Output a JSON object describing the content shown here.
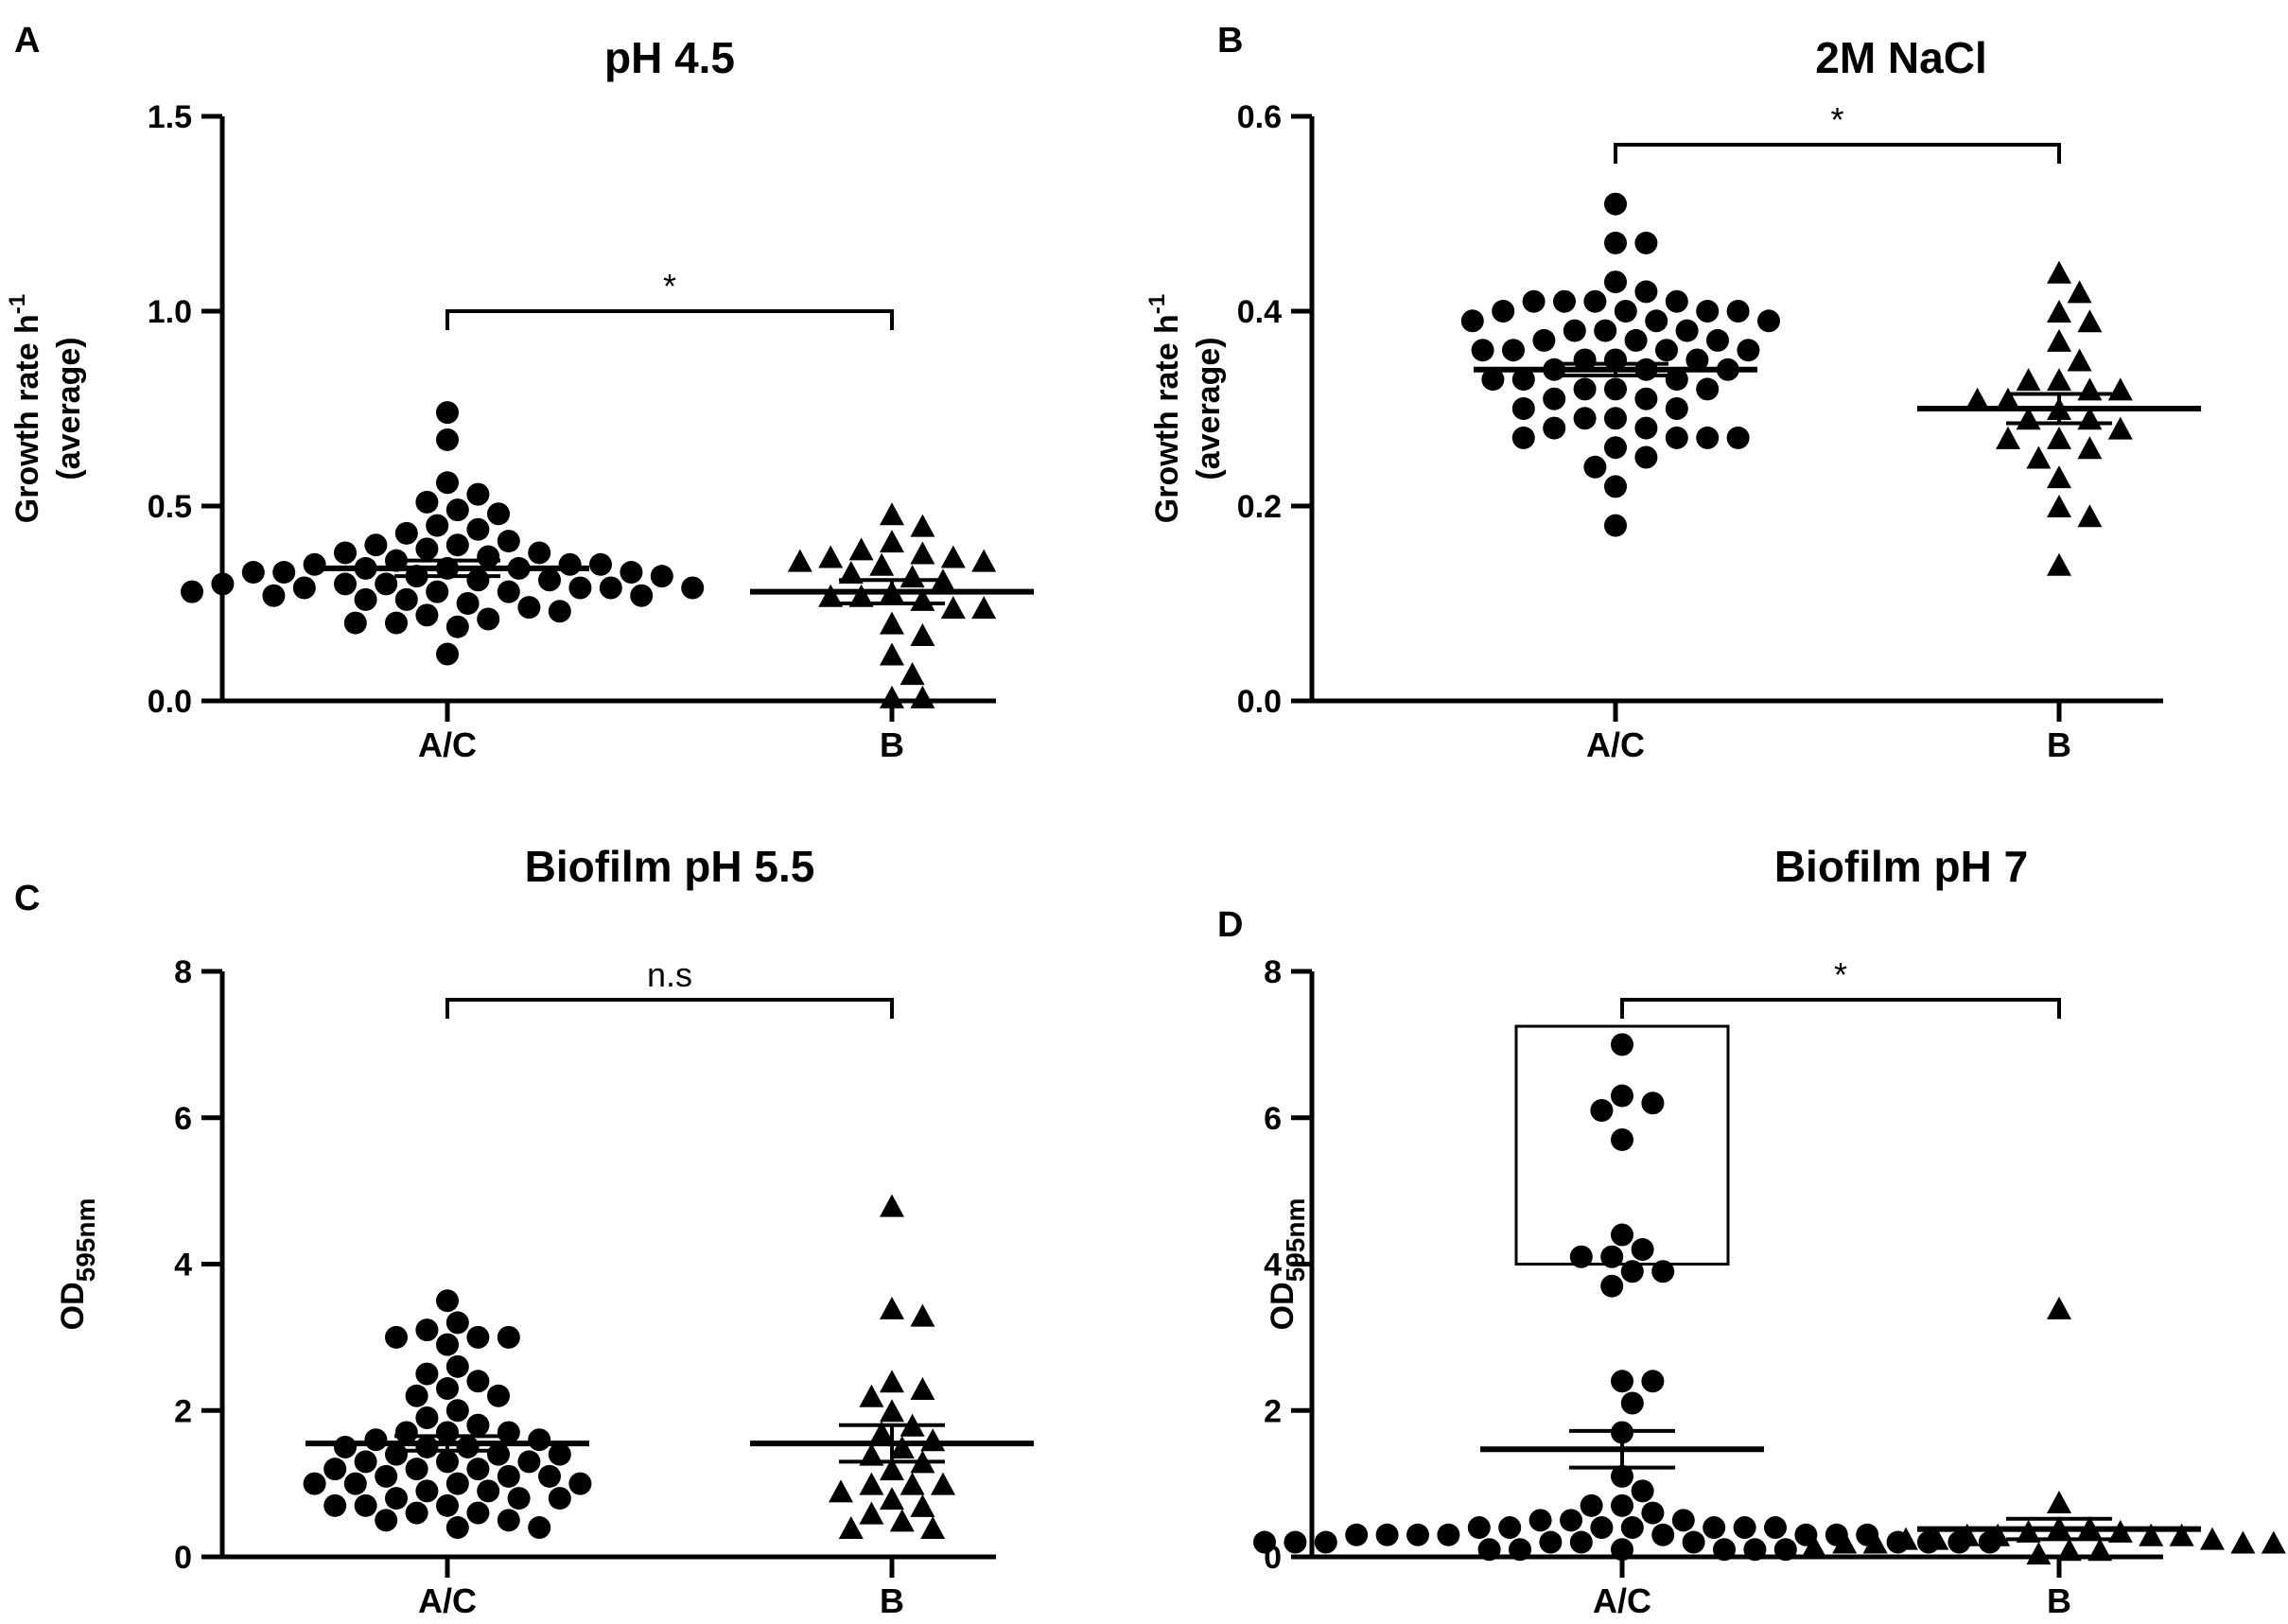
{
  "chart_data": [
    {
      "type": "scatter",
      "panel": "A",
      "title": "pH 4.5",
      "ylabel": [
        "Growth rate h",
        "(average)"
      ],
      "ylabel_sup": "-1",
      "ylim": [
        0,
        1.5
      ],
      "yticks": [
        0,
        0.5,
        1.0,
        1.5
      ],
      "ytick_labels": [
        "0.0",
        "0.5",
        "1.0",
        "1.5"
      ],
      "categories": [
        "A/C",
        "B"
      ],
      "significance": "*",
      "series": [
        {
          "name": "A/C",
          "marker": "circle",
          "mean": 0.34,
          "sem": 0.02,
          "values": [
            0.74,
            0.67,
            0.56,
            0.53,
            0.51,
            0.49,
            0.48,
            0.45,
            0.44,
            0.43,
            0.41,
            0.4,
            0.4,
            0.39,
            0.38,
            0.38,
            0.37,
            0.36,
            0.35,
            0.35,
            0.35,
            0.34,
            0.34,
            0.34,
            0.33,
            0.33,
            0.33,
            0.32,
            0.32,
            0.31,
            0.31,
            0.3,
            0.3,
            0.3,
            0.29,
            0.29,
            0.29,
            0.29,
            0.28,
            0.28,
            0.28,
            0.27,
            0.27,
            0.26,
            0.26,
            0.25,
            0.24,
            0.23,
            0.22,
            0.21,
            0.2,
            0.2,
            0.19,
            0.12
          ]
        },
        {
          "name": "B",
          "marker": "triangle",
          "mean": 0.28,
          "sem": 0.03,
          "values": [
            0.48,
            0.45,
            0.41,
            0.39,
            0.38,
            0.37,
            0.37,
            0.36,
            0.36,
            0.35,
            0.33,
            0.32,
            0.31,
            0.28,
            0.27,
            0.27,
            0.26,
            0.24,
            0.24,
            0.2,
            0.17,
            0.12,
            0.07,
            0.01,
            0.01
          ]
        }
      ]
    },
    {
      "type": "scatter",
      "panel": "B",
      "title": "2M NaCl",
      "ylabel": [
        "Growth rate h",
        "(average)"
      ],
      "ylabel_sup": "-1",
      "ylim": [
        0,
        0.6
      ],
      "yticks": [
        0,
        0.2,
        0.4,
        0.6
      ],
      "ytick_labels": [
        "0.0",
        "0.2",
        "0.4",
        "0.6"
      ],
      "categories": [
        "A/C",
        "B"
      ],
      "significance": "*",
      "series": [
        {
          "name": "A/C",
          "marker": "circle",
          "mean": 0.34,
          "sem": 0.006,
          "values": [
            0.51,
            0.47,
            0.47,
            0.43,
            0.42,
            0.41,
            0.41,
            0.41,
            0.41,
            0.4,
            0.4,
            0.4,
            0.4,
            0.39,
            0.39,
            0.39,
            0.38,
            0.38,
            0.38,
            0.37,
            0.37,
            0.37,
            0.36,
            0.36,
            0.36,
            0.36,
            0.35,
            0.35,
            0.35,
            0.34,
            0.34,
            0.34,
            0.33,
            0.33,
            0.33,
            0.32,
            0.32,
            0.32,
            0.31,
            0.31,
            0.3,
            0.3,
            0.29,
            0.29,
            0.28,
            0.28,
            0.27,
            0.27,
            0.27,
            0.27,
            0.26,
            0.25,
            0.24,
            0.22,
            0.18
          ]
        },
        {
          "name": "B",
          "marker": "triangle",
          "mean": 0.3,
          "sem": 0.015,
          "values": [
            0.44,
            0.42,
            0.4,
            0.39,
            0.37,
            0.35,
            0.33,
            0.33,
            0.32,
            0.32,
            0.31,
            0.31,
            0.3,
            0.29,
            0.29,
            0.28,
            0.27,
            0.27,
            0.26,
            0.25,
            0.23,
            0.2,
            0.19,
            0.14
          ]
        }
      ]
    },
    {
      "type": "scatter",
      "panel": "C",
      "title": "Biofilm pH 5.5",
      "ylabel": [
        "OD"
      ],
      "ylabel_sub": "595nm",
      "ylim": [
        0,
        8
      ],
      "yticks": [
        0,
        2,
        4,
        6,
        8
      ],
      "ytick_labels": [
        "0",
        "2",
        "4",
        "6",
        "8"
      ],
      "categories": [
        "A/C",
        "B"
      ],
      "significance": "n.s",
      "series": [
        {
          "name": "A/C",
          "marker": "circle",
          "mean": 1.55,
          "sem": 0.1,
          "values": [
            3.5,
            3.2,
            3.1,
            3.0,
            3.0,
            3.0,
            2.9,
            2.6,
            2.5,
            2.4,
            2.3,
            2.2,
            2.2,
            2.0,
            1.9,
            1.8,
            1.7,
            1.7,
            1.7,
            1.6,
            1.6,
            1.5,
            1.5,
            1.5,
            1.4,
            1.4,
            1.4,
            1.3,
            1.3,
            1.3,
            1.2,
            1.2,
            1.2,
            1.1,
            1.1,
            1.1,
            1.0,
            1.0,
            1.0,
            1.0,
            0.9,
            0.9,
            0.8,
            0.8,
            0.8,
            0.7,
            0.7,
            0.7,
            0.6,
            0.6,
            0.5,
            0.5,
            0.4,
            0.4
          ]
        },
        {
          "name": "B",
          "marker": "triangle",
          "mean": 1.55,
          "sem": 0.25,
          "values": [
            4.8,
            3.4,
            3.3,
            2.4,
            2.3,
            2.2,
            2.0,
            1.8,
            1.7,
            1.6,
            1.5,
            1.4,
            1.3,
            1.2,
            1.0,
            1.0,
            1.0,
            0.9,
            0.8,
            0.7,
            0.6,
            0.5,
            0.4,
            0.4
          ]
        }
      ]
    },
    {
      "type": "scatter",
      "panel": "D",
      "title": "Biofilm pH 7",
      "ylabel": [
        "OD"
      ],
      "ylabel_sub": "595nm",
      "ylim": [
        0,
        8
      ],
      "yticks": [
        0,
        2,
        4,
        6,
        8
      ],
      "ytick_labels": [
        "0",
        "2",
        "4",
        "6",
        "8"
      ],
      "categories": [
        "A/C",
        "B"
      ],
      "significance": "*",
      "highlight_box": {
        "x_from": "A/C",
        "y_range": [
          4.0,
          7.25
        ]
      },
      "series": [
        {
          "name": "A/C",
          "marker": "circle",
          "mean": 1.47,
          "sem": 0.25,
          "values": [
            7.0,
            6.3,
            6.2,
            6.1,
            5.7,
            4.4,
            4.2,
            4.1,
            4.1,
            3.9,
            3.9,
            3.7,
            2.4,
            2.4,
            2.1,
            1.7,
            1.1,
            0.9,
            0.7,
            0.7,
            0.6,
            0.5,
            0.5,
            0.5,
            0.4,
            0.4,
            0.4,
            0.4,
            0.4,
            0.4,
            0.4,
            0.3,
            0.3,
            0.3,
            0.3,
            0.3,
            0.3,
            0.3,
            0.3,
            0.2,
            0.2,
            0.2,
            0.2,
            0.2,
            0.2,
            0.2,
            0.2,
            0.2,
            0.2,
            0.1,
            0.1,
            0.1,
            0.1,
            0.1,
            0.1
          ]
        },
        {
          "name": "B",
          "marker": "triangle",
          "mean": 0.38,
          "sem": 0.14,
          "values": [
            3.4,
            0.75,
            0.4,
            0.4,
            0.35,
            0.35,
            0.3,
            0.3,
            0.3,
            0.3,
            0.25,
            0.25,
            0.25,
            0.2,
            0.2,
            0.2,
            0.2,
            0.15,
            0.15,
            0.15,
            0.1,
            0.1,
            0.05
          ]
        }
      ]
    }
  ]
}
